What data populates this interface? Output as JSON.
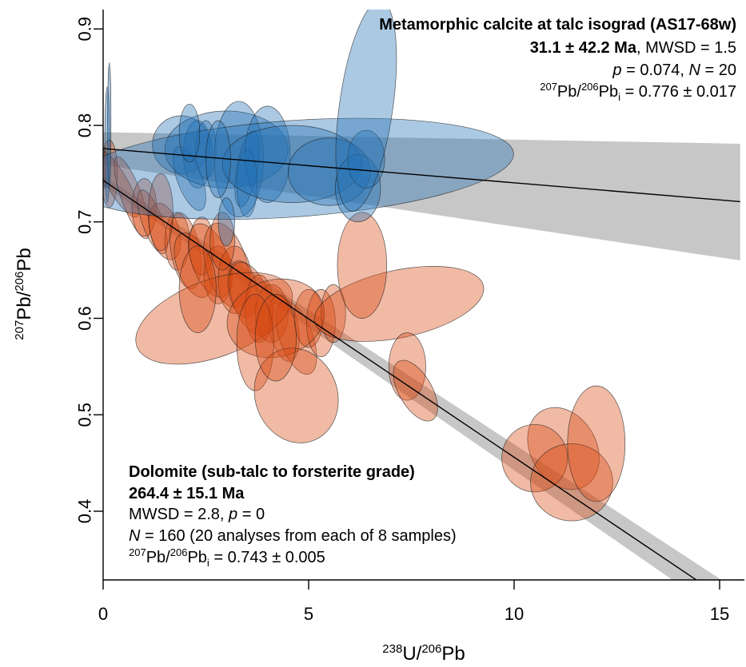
{
  "chart_data": {
    "type": "scatter",
    "xlim": [
      0,
      15.5
    ],
    "ylim": [
      0.33,
      0.93
    ],
    "x_ticks": [
      0,
      5,
      10,
      15
    ],
    "y_ticks": [
      0.4,
      0.5,
      0.6,
      0.7,
      0.8,
      0.9
    ],
    "x_tick_labels": [
      "0",
      "5",
      "10",
      "15"
    ],
    "y_tick_labels": [
      "0.4",
      "0.5",
      "0.6",
      "0.7",
      "0.8",
      "0.9"
    ],
    "xlabel": {
      "sup1": "238",
      "base1": "U/",
      "sup2": "206",
      "base2": "Pb"
    },
    "ylabel": {
      "sup1": "207",
      "base1": "Pb/",
      "sup2": "206",
      "base2": "Pb"
    },
    "grid": false,
    "colors": {
      "calcite_fill": "#9ecae1",
      "calcite_dark": "#2171b5",
      "dolomite_fill": "#f4b79d",
      "dolomite_dark": "#d84a12",
      "ellipse_edge": "#222222",
      "regression_band": "#bdbdbd",
      "regression_line": "#000000"
    },
    "calcite": {
      "title": "Metamorphic calcite at talc isograd (AS17-68w)",
      "age": "31.1 ± 42.2 Ma",
      "mswd": ", MWSD = 1.5",
      "p_label": "p",
      "p_value": " = 0.074, ",
      "n_label": "N",
      "n_value": " = 20",
      "initial_sup1": "207",
      "initial_mid": "Pb/",
      "initial_sup2": "206",
      "initial_base": "Pb",
      "initial_sub": "i",
      "initial_value": " = 0.776 ± 0.017",
      "regression": {
        "y_intercept": 0.776,
        "y_at_xmax": 0.721,
        "band_low_at_xmax": 0.66,
        "band_high_at_xmax": 0.781,
        "band_halfwidth_at_x0": 0.017
      },
      "ellipses": [
        {
          "x": 0.1,
          "y": 0.78,
          "rx": 0.06,
          "ry": 0.06,
          "rot": 0
        },
        {
          "x": 0.15,
          "y": 0.8,
          "rx": 0.04,
          "ry": 0.065,
          "rot": 0
        },
        {
          "x": 1.9,
          "y": 0.78,
          "rx": 0.7,
          "ry": 0.03,
          "rot": -10
        },
        {
          "x": 2.3,
          "y": 0.77,
          "rx": 0.35,
          "ry": 0.035,
          "rot": 0
        },
        {
          "x": 2.5,
          "y": 0.775,
          "rx": 0.25,
          "ry": 0.03,
          "rot": 0
        },
        {
          "x": 2.1,
          "y": 0.745,
          "rx": 0.3,
          "ry": 0.035,
          "rot": -20
        },
        {
          "x": 3.0,
          "y": 0.775,
          "rx": 1.5,
          "ry": 0.04,
          "rot": 0
        },
        {
          "x": 3.3,
          "y": 0.765,
          "rx": 0.6,
          "ry": 0.06,
          "rot": 0
        },
        {
          "x": 3.5,
          "y": 0.755,
          "rx": 0.25,
          "ry": 0.04,
          "rot": 10
        },
        {
          "x": 4.0,
          "y": 0.77,
          "rx": 0.55,
          "ry": 0.05,
          "rot": 0
        },
        {
          "x": 3.5,
          "y": 0.74,
          "rx": 0.25,
          "ry": 0.035,
          "rot": 0
        },
        {
          "x": 4.6,
          "y": 0.755,
          "rx": 5.4,
          "ry": 0.05,
          "rot": -4
        },
        {
          "x": 4.6,
          "y": 0.76,
          "rx": 1.7,
          "ry": 0.04,
          "rot": 0
        },
        {
          "x": 5.5,
          "y": 0.752,
          "rx": 1.0,
          "ry": 0.035,
          "rot": 0
        },
        {
          "x": 6.2,
          "y": 0.735,
          "rx": 0.55,
          "ry": 0.035,
          "rot": 0
        },
        {
          "x": 6.4,
          "y": 0.765,
          "rx": 0.45,
          "ry": 0.03,
          "rot": 0
        },
        {
          "x": 6.4,
          "y": 0.82,
          "rx": 0.65,
          "ry": 0.11,
          "rot": 8
        },
        {
          "x": 2.1,
          "y": 0.792,
          "rx": 0.25,
          "ry": 0.03,
          "rot": 0
        },
        {
          "x": 2.8,
          "y": 0.765,
          "rx": 0.3,
          "ry": 0.04,
          "rot": 0
        },
        {
          "x": 3.0,
          "y": 0.7,
          "rx": 0.2,
          "ry": 0.025,
          "rot": 0
        }
      ]
    },
    "dolomite": {
      "title": "Dolomite (sub-talc to forsterite grade)",
      "age": "264.4 ± 15.1 Ma",
      "mswd": "MWSD = 2.8, ",
      "p_label": "p",
      "p_value": " = 0",
      "n_label": "N",
      "n_value": " = 160 (20 analyses from each of 8 samples)",
      "initial_sup1": "207",
      "initial_mid": "Pb/",
      "initial_sup2": "206",
      "initial_base": "Pb",
      "initial_sub": "i",
      "initial_value": " = 0.743 ± 0.005",
      "regression": {
        "y_intercept": 0.743,
        "slope": -0.0287,
        "band_halfwidth_at_x0": 0.005,
        "band_halfwidth_at_xmax": 0.018
      },
      "ellipses": [
        {
          "x": 0.15,
          "y": 0.75,
          "rx": 0.2,
          "ry": 0.035,
          "rot": 0
        },
        {
          "x": 0.35,
          "y": 0.74,
          "rx": 0.25,
          "ry": 0.04,
          "rot": -30
        },
        {
          "x": 0.7,
          "y": 0.725,
          "rx": 0.25,
          "ry": 0.045,
          "rot": -20
        },
        {
          "x": 1.0,
          "y": 0.715,
          "rx": 0.3,
          "ry": 0.03,
          "rot": 0
        },
        {
          "x": 1.2,
          "y": 0.7,
          "rx": 0.25,
          "ry": 0.035,
          "rot": -20
        },
        {
          "x": 1.5,
          "y": 0.69,
          "rx": 0.35,
          "ry": 0.03,
          "rot": -15
        },
        {
          "x": 1.8,
          "y": 0.68,
          "rx": 0.3,
          "ry": 0.03,
          "rot": 0
        },
        {
          "x": 2.0,
          "y": 0.67,
          "rx": 0.35,
          "ry": 0.04,
          "rot": -10
        },
        {
          "x": 2.2,
          "y": 0.655,
          "rx": 0.4,
          "ry": 0.035,
          "rot": -20
        },
        {
          "x": 2.4,
          "y": 0.675,
          "rx": 0.3,
          "ry": 0.03,
          "rot": 0
        },
        {
          "x": 2.6,
          "y": 0.66,
          "rx": 0.45,
          "ry": 0.04,
          "rot": -20
        },
        {
          "x": 2.8,
          "y": 0.645,
          "rx": 0.35,
          "ry": 0.03,
          "rot": 0
        },
        {
          "x": 3.0,
          "y": 0.655,
          "rx": 0.5,
          "ry": 0.045,
          "rot": -15
        },
        {
          "x": 3.2,
          "y": 0.64,
          "rx": 0.4,
          "ry": 0.035,
          "rot": 0
        },
        {
          "x": 3.4,
          "y": 0.63,
          "rx": 0.35,
          "ry": 0.03,
          "rot": -10
        },
        {
          "x": 3.6,
          "y": 0.62,
          "rx": 0.45,
          "ry": 0.04,
          "rot": -20
        },
        {
          "x": 3.8,
          "y": 0.61,
          "rx": 0.35,
          "ry": 0.035,
          "rot": 0
        },
        {
          "x": 4.1,
          "y": 0.605,
          "rx": 0.4,
          "ry": 0.03,
          "rot": 0
        },
        {
          "x": 4.4,
          "y": 0.59,
          "rx": 0.35,
          "ry": 0.035,
          "rot": -10
        },
        {
          "x": 4.7,
          "y": 0.58,
          "rx": 0.4,
          "ry": 0.04,
          "rot": -20
        },
        {
          "x": 5.0,
          "y": 0.6,
          "rx": 0.35,
          "ry": 0.03,
          "rot": 0
        },
        {
          "x": 5.3,
          "y": 0.595,
          "rx": 0.35,
          "ry": 0.035,
          "rot": 0
        },
        {
          "x": 5.6,
          "y": 0.605,
          "rx": 0.3,
          "ry": 0.03,
          "rot": 0
        },
        {
          "x": 2.7,
          "y": 0.6,
          "rx": 2.0,
          "ry": 0.04,
          "rot": -20
        },
        {
          "x": 4.2,
          "y": 0.6,
          "rx": 1.2,
          "ry": 0.04,
          "rot": -15
        },
        {
          "x": 2.3,
          "y": 0.63,
          "rx": 0.45,
          "ry": 0.045,
          "rot": 0
        },
        {
          "x": 3.7,
          "y": 0.575,
          "rx": 0.45,
          "ry": 0.05,
          "rot": 0
        },
        {
          "x": 4.7,
          "y": 0.52,
          "rx": 1.0,
          "ry": 0.05,
          "rot": -20
        },
        {
          "x": 4.2,
          "y": 0.58,
          "rx": 0.5,
          "ry": 0.045,
          "rot": 0
        },
        {
          "x": 7.2,
          "y": 0.615,
          "rx": 2.1,
          "ry": 0.035,
          "rot": -12
        },
        {
          "x": 6.3,
          "y": 0.655,
          "rx": 0.6,
          "ry": 0.055,
          "rot": 0
        },
        {
          "x": 7.4,
          "y": 0.55,
          "rx": 0.45,
          "ry": 0.035,
          "rot": 0
        },
        {
          "x": 7.6,
          "y": 0.525,
          "rx": 0.4,
          "ry": 0.035,
          "rot": -30
        },
        {
          "x": 11.2,
          "y": 0.465,
          "rx": 0.8,
          "ry": 0.045,
          "rot": -30
        },
        {
          "x": 10.5,
          "y": 0.455,
          "rx": 0.8,
          "ry": 0.035,
          "rot": 0
        },
        {
          "x": 11.4,
          "y": 0.43,
          "rx": 1.0,
          "ry": 0.04,
          "rot": 0
        },
        {
          "x": 12.0,
          "y": 0.47,
          "rx": 0.7,
          "ry": 0.06,
          "rot": 0
        },
        {
          "x": 0.05,
          "y": 0.755,
          "rx": 0.05,
          "ry": 0.02,
          "rot": 0
        },
        {
          "x": 1.4,
          "y": 0.71,
          "rx": 0.3,
          "ry": 0.04,
          "rot": 0
        },
        {
          "x": 2.9,
          "y": 0.68,
          "rx": 0.3,
          "ry": 0.03,
          "rot": 0
        }
      ]
    }
  }
}
